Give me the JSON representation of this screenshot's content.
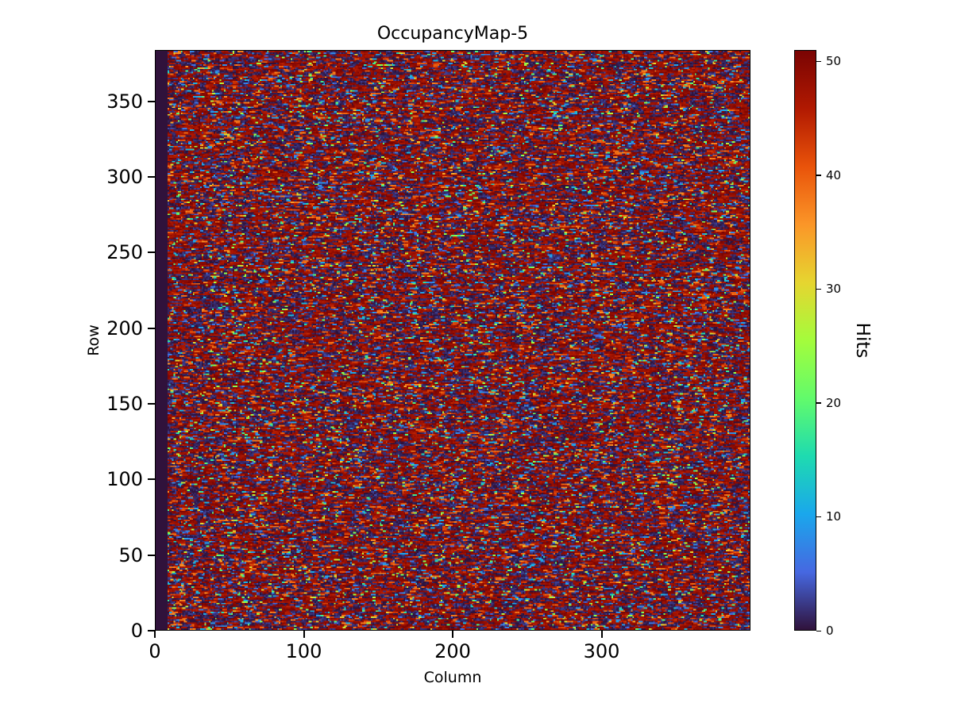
{
  "figure": {
    "background": "#ffffff"
  },
  "chart_data": {
    "type": "heatmap",
    "title": "OccupancyMap-5",
    "xlabel": "Column",
    "ylabel": "Row",
    "x_range": [
      0,
      400
    ],
    "y_range": [
      0,
      384
    ],
    "x_ticks": [
      0,
      100,
      200,
      300
    ],
    "y_ticks": [
      0,
      50,
      100,
      150,
      200,
      250,
      300,
      350
    ],
    "grid": false,
    "colorbar": {
      "label": "Hits",
      "ticks": [
        0,
        10,
        20,
        30,
        40,
        50
      ],
      "vmin": 0,
      "vmax": 51,
      "position": "right"
    },
    "colormap": {
      "name": "turbo",
      "stops": [
        [
          0.0,
          "#30123b"
        ],
        [
          0.1,
          "#4668e1"
        ],
        [
          0.2,
          "#1aa7ec"
        ],
        [
          0.3,
          "#1edbb0"
        ],
        [
          0.4,
          "#62fb6b"
        ],
        [
          0.5,
          "#a4fc3c"
        ],
        [
          0.6,
          "#e6d530"
        ],
        [
          0.7,
          "#fb9628"
        ],
        [
          0.8,
          "#e9530a"
        ],
        [
          0.9,
          "#b11901"
        ],
        [
          1.0,
          "#7a0403"
        ]
      ]
    },
    "values": {
      "rows": 384,
      "cols": 400,
      "synthesis": "pseudorandom-occupancy",
      "seed": 5,
      "empty_left_columns": 8,
      "p_high_red": 0.38,
      "p_dark_zero": 0.38,
      "p_orange": 0.1,
      "p_low_blue": 0.07,
      "p_mid_bright": 0.07,
      "description": "Dense speckled occupancy map: mostly saturated dark-red hits (~46-51) and near-zero dark pixels, with short horizontal dashes of orange/red, scattered cyan/green/yellow mid values, and a narrow empty column band at the far left."
    }
  }
}
